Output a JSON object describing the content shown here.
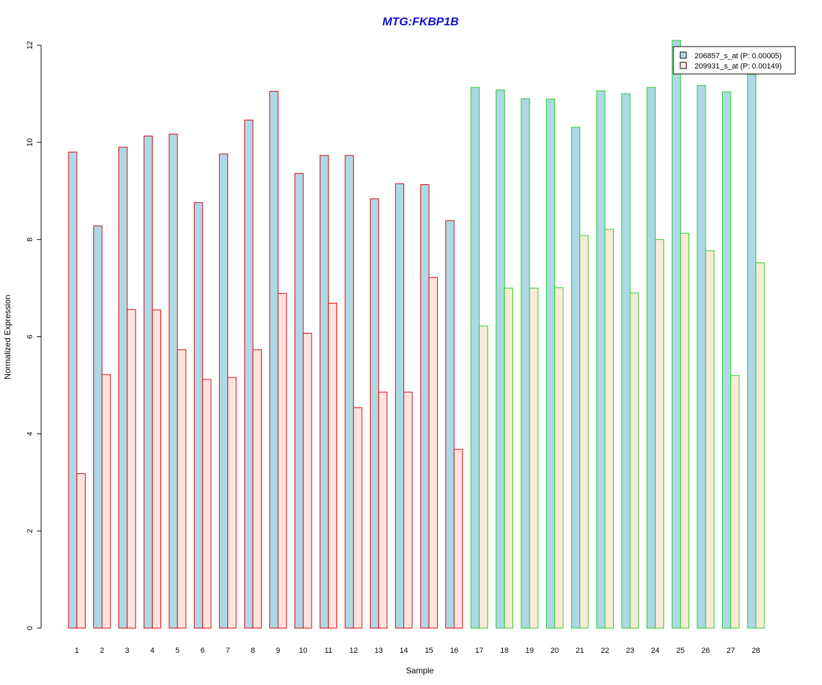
{
  "chart_data": {
    "type": "bar",
    "title": "MTG:FKBP1B",
    "xlabel": "Sample",
    "ylabel": "Normalized Expression",
    "ylim": [
      0,
      12
    ],
    "yticks": [
      0,
      2,
      4,
      6,
      8,
      10,
      12
    ],
    "categories": [
      "1",
      "2",
      "3",
      "4",
      "5",
      "6",
      "7",
      "8",
      "9",
      "10",
      "11",
      "12",
      "13",
      "14",
      "15",
      "16",
      "17",
      "18",
      "19",
      "20",
      "21",
      "22",
      "23",
      "24",
      "25",
      "26",
      "27",
      "28"
    ],
    "series": [
      {
        "name": "206857_s_at (P: 0.00005)",
        "values": [
          9.8,
          8.28,
          9.9,
          10.13,
          10.17,
          8.76,
          9.76,
          10.46,
          11.05,
          9.36,
          9.73,
          9.73,
          8.84,
          9.15,
          9.13,
          8.39,
          11.13,
          11.08,
          10.9,
          10.89,
          10.31,
          11.06,
          11.0,
          11.13,
          12.1,
          11.17,
          11.04,
          11.4
        ]
      },
      {
        "name": "209931_s_at (P: 0.00149)",
        "values": [
          3.18,
          5.22,
          6.56,
          6.55,
          5.73,
          5.12,
          5.16,
          5.73,
          6.89,
          6.07,
          6.69,
          4.54,
          4.86,
          4.86,
          7.22,
          3.68,
          6.22,
          7.0,
          7.0,
          7.01,
          8.08,
          8.21,
          6.9,
          8.0,
          8.13,
          7.77,
          5.2,
          7.52
        ]
      }
    ],
    "group_border_colors": [
      "#dd0000",
      "#dd0000",
      "#dd0000",
      "#dd0000",
      "#dd0000",
      "#dd0000",
      "#dd0000",
      "#dd0000",
      "#dd0000",
      "#dd0000",
      "#dd0000",
      "#dd0000",
      "#dd0000",
      "#dd0000",
      "#dd0000",
      "#dd0000",
      "#22cc22",
      "#22cc22",
      "#22cc22",
      "#22cc22",
      "#22cc22",
      "#22cc22",
      "#22cc22",
      "#22cc22",
      "#22cc22",
      "#22cc22",
      "#22cc22",
      "#22cc22"
    ],
    "series_fills": [
      "#add8e6",
      "#ffe4e1"
    ],
    "series_fills_group2": [
      "#add8e6",
      "#faebd7"
    ],
    "title_color": "#1010cc",
    "legend_position": "top-right",
    "grid": false
  }
}
